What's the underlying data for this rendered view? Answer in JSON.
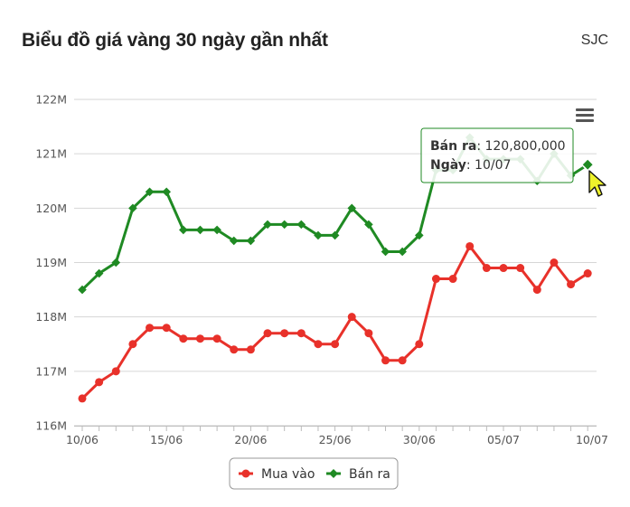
{
  "header": {
    "title": "Biểu đồ giá vàng 30 ngày gần nhất",
    "source": "SJC"
  },
  "colors": {
    "buy": "#e8312a",
    "sell": "#1f8a23",
    "grid": "#d6d6d6",
    "axis_text": "#555555"
  },
  "icons": {
    "menu": "hamburger-menu-icon",
    "cursor": "mouse-pointer-icon"
  },
  "tooltip": {
    "series_label": "Bán ra",
    "value_text": ": 120,800,000",
    "date_label": "Ngày",
    "date_text": ": 10/07"
  },
  "chart_data": {
    "type": "line",
    "title": "Biểu đồ giá vàng 30 ngày gần nhất",
    "xlabel": "",
    "ylabel": "",
    "x": [
      "10/06",
      "11/06",
      "12/06",
      "13/06",
      "14/06",
      "15/06",
      "16/06",
      "17/06",
      "18/06",
      "19/06",
      "20/06",
      "21/06",
      "22/06",
      "23/06",
      "24/06",
      "25/06",
      "26/06",
      "27/06",
      "28/06",
      "29/06",
      "30/06",
      "01/07",
      "02/07",
      "03/07",
      "04/07",
      "05/07",
      "06/07",
      "07/07",
      "08/07",
      "09/07",
      "10/07"
    ],
    "x_tick_labels": [
      "10/06",
      "15/06",
      "20/06",
      "25/06",
      "30/06",
      "05/07",
      "10/07"
    ],
    "y_tick_labels": [
      "116M",
      "117M",
      "118M",
      "119M",
      "120M",
      "121M",
      "122M"
    ],
    "ylim": [
      116000000,
      122000000
    ],
    "grid": true,
    "legend_position": "bottom",
    "series": [
      {
        "name": "Mua vào",
        "values": [
          116500000,
          116800000,
          117000000,
          117500000,
          117800000,
          117800000,
          117600000,
          117600000,
          117600000,
          117400000,
          117400000,
          117700000,
          117700000,
          117700000,
          117500000,
          117500000,
          118000000,
          117700000,
          117200000,
          117200000,
          117500000,
          118700000,
          118700000,
          119300000,
          118900000,
          118900000,
          118900000,
          118500000,
          119000000,
          118600000,
          118800000
        ]
      },
      {
        "name": "Bán ra",
        "values": [
          118500000,
          118800000,
          119000000,
          120000000,
          120300000,
          120300000,
          119600000,
          119600000,
          119600000,
          119400000,
          119400000,
          119700000,
          119700000,
          119700000,
          119500000,
          119500000,
          120000000,
          119700000,
          119200000,
          119200000,
          119500000,
          120700000,
          120700000,
          121300000,
          120900000,
          120900000,
          120900000,
          120500000,
          121000000,
          120600000,
          120800000
        ]
      }
    ]
  }
}
